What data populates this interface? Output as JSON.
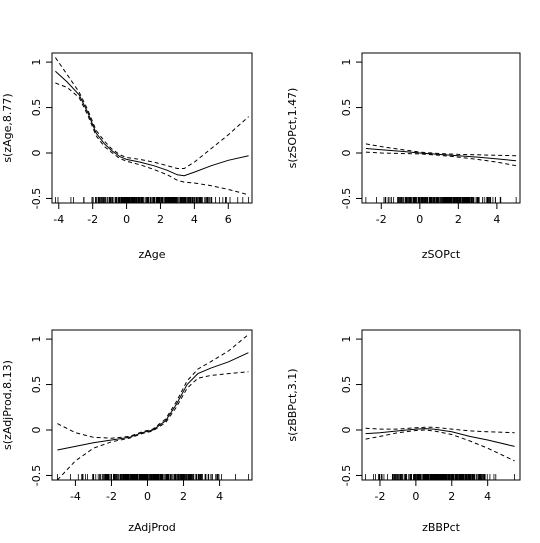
{
  "chart_data": [
    {
      "type": "line",
      "xlabel": "zAge",
      "ylabel": "s(zAge,8.77)",
      "xticks": [
        -4,
        -2,
        0,
        2,
        4,
        6
      ],
      "yticks": [
        -0.5,
        0.0,
        0.5,
        1.0
      ],
      "xlim": [
        -4.4,
        7.4
      ],
      "ylim": [
        -0.55,
        1.1
      ],
      "series": [
        {
          "role": "estimate",
          "x": [
            -4.2,
            -3.5,
            -2.8,
            -2.3,
            -1.8,
            -1.3,
            -0.9,
            -0.4,
            0,
            0.8,
            1.6,
            2.4,
            3.0,
            3.4,
            4.0,
            5.0,
            6.0,
            7.2
          ],
          "y": [
            0.9,
            0.78,
            0.64,
            0.45,
            0.22,
            0.1,
            0.03,
            -0.04,
            -0.07,
            -0.1,
            -0.14,
            -0.19,
            -0.24,
            -0.25,
            -0.21,
            -0.14,
            -0.08,
            -0.03
          ]
        },
        {
          "role": "upper",
          "x": [
            -4.2,
            -3.5,
            -2.8,
            -2.3,
            -1.8,
            -1.3,
            -0.9,
            -0.4,
            0,
            0.8,
            1.6,
            2.4,
            3.0,
            3.4,
            4.0,
            5.0,
            6.0,
            7.2
          ],
          "y": [
            1.05,
            0.86,
            0.67,
            0.48,
            0.25,
            0.13,
            0.05,
            -0.02,
            -0.05,
            -0.07,
            -0.1,
            -0.14,
            -0.17,
            -0.17,
            -0.1,
            0.05,
            0.2,
            0.4
          ]
        },
        {
          "role": "lower",
          "x": [
            -4.2,
            -3.5,
            -2.8,
            -2.3,
            -1.8,
            -1.3,
            -0.9,
            -0.4,
            0,
            0.8,
            1.6,
            2.4,
            3.0,
            3.4,
            4.0,
            5.0,
            6.0,
            7.2
          ],
          "y": [
            0.77,
            0.72,
            0.61,
            0.42,
            0.19,
            0.07,
            0.01,
            -0.06,
            -0.09,
            -0.13,
            -0.18,
            -0.24,
            -0.3,
            -0.32,
            -0.33,
            -0.36,
            -0.4,
            -0.46
          ]
        }
      ],
      "rug_range": [
        -4.2,
        7.2
      ],
      "rug_count": 300
    },
    {
      "type": "line",
      "xlabel": "zSOPct",
      "ylabel": "s(zSOPct,1.47)",
      "xticks": [
        -2,
        0,
        2,
        4
      ],
      "yticks": [
        -0.5,
        0.0,
        0.5,
        1.0
      ],
      "xlim": [
        -3.0,
        5.2
      ],
      "ylim": [
        -0.55,
        1.1
      ],
      "series": [
        {
          "role": "estimate",
          "x": [
            -2.8,
            -2.0,
            -1.0,
            0,
            1.0,
            2.0,
            3.0,
            4.0,
            5.0
          ],
          "y": [
            0.05,
            0.035,
            0.02,
            0.0,
            -0.015,
            -0.03,
            -0.045,
            -0.065,
            -0.085
          ]
        },
        {
          "role": "upper",
          "x": [
            -2.8,
            -2.0,
            -1.0,
            0,
            1.0,
            2.0,
            3.0,
            4.0,
            5.0
          ],
          "y": [
            0.1,
            0.07,
            0.04,
            0.01,
            -0.005,
            -0.015,
            -0.02,
            -0.025,
            -0.03
          ]
        },
        {
          "role": "lower",
          "x": [
            -2.8,
            -2.0,
            -1.0,
            0,
            1.0,
            2.0,
            3.0,
            4.0,
            5.0
          ],
          "y": [
            0.01,
            0.0,
            -0.005,
            -0.01,
            -0.025,
            -0.045,
            -0.07,
            -0.1,
            -0.14
          ]
        }
      ],
      "rug_range": [
        -2.8,
        5.0
      ],
      "rug_count": 260
    },
    {
      "type": "line",
      "xlabel": "zAdjProd",
      "ylabel": "s(zAdjProd,8.13)",
      "xticks": [
        -4,
        -2,
        0,
        2,
        4
      ],
      "yticks": [
        -0.5,
        0.0,
        0.5,
        1.0
      ],
      "xlim": [
        -5.3,
        5.8
      ],
      "ylim": [
        -0.55,
        1.1
      ],
      "series": [
        {
          "role": "estimate",
          "x": [
            -5.0,
            -4.0,
            -3.0,
            -2.0,
            -1.0,
            -0.3,
            0.3,
            1.0,
            1.6,
            2.2,
            2.8,
            3.5,
            4.5,
            5.6
          ],
          "y": [
            -0.22,
            -0.18,
            -0.14,
            -0.11,
            -0.08,
            -0.03,
            0.0,
            0.1,
            0.28,
            0.5,
            0.62,
            0.68,
            0.75,
            0.85
          ]
        },
        {
          "role": "upper",
          "x": [
            -5.0,
            -4.0,
            -3.0,
            -2.0,
            -1.0,
            -0.3,
            0.3,
            1.0,
            1.6,
            2.2,
            2.8,
            3.5,
            4.5,
            5.6
          ],
          "y": [
            0.07,
            -0.03,
            -0.08,
            -0.09,
            -0.07,
            -0.02,
            0.01,
            0.12,
            0.31,
            0.54,
            0.67,
            0.75,
            0.87,
            1.05
          ]
        },
        {
          "role": "lower",
          "x": [
            -5.0,
            -4.0,
            -3.0,
            -2.0,
            -1.0,
            -0.3,
            0.3,
            1.0,
            1.6,
            2.2,
            2.8,
            3.5,
            4.5,
            5.6
          ],
          "y": [
            -0.55,
            -0.34,
            -0.2,
            -0.13,
            -0.09,
            -0.04,
            -0.01,
            0.08,
            0.25,
            0.46,
            0.57,
            0.6,
            0.62,
            0.64
          ]
        }
      ],
      "rug_range": [
        -5.0,
        5.6
      ],
      "rug_count": 300
    },
    {
      "type": "line",
      "xlabel": "zBBPct",
      "ylabel": "s(zBBPct,3.1)",
      "xticks": [
        -2,
        0,
        2,
        4
      ],
      "yticks": [
        -0.5,
        0.0,
        0.5,
        1.0
      ],
      "xlim": [
        -3.0,
        5.8
      ],
      "ylim": [
        -0.55,
        1.1
      ],
      "series": [
        {
          "role": "estimate",
          "x": [
            -2.8,
            -2.0,
            -1.0,
            0,
            0.5,
            1.0,
            2.0,
            3.0,
            4.0,
            5.5
          ],
          "y": [
            -0.04,
            -0.03,
            -0.01,
            0.01,
            0.015,
            0.01,
            -0.02,
            -0.07,
            -0.11,
            -0.18
          ]
        },
        {
          "role": "upper",
          "x": [
            -2.8,
            -2.0,
            -1.0,
            0,
            0.5,
            1.0,
            2.0,
            3.0,
            4.0,
            5.5
          ],
          "y": [
            0.02,
            0.01,
            0.01,
            0.025,
            0.03,
            0.03,
            0.01,
            -0.01,
            -0.02,
            -0.03
          ]
        },
        {
          "role": "lower",
          "x": [
            -2.8,
            -2.0,
            -1.0,
            0,
            0.5,
            1.0,
            2.0,
            3.0,
            4.0,
            5.5
          ],
          "y": [
            -0.1,
            -0.07,
            -0.03,
            -0.005,
            0.0,
            -0.01,
            -0.05,
            -0.12,
            -0.2,
            -0.34
          ]
        }
      ],
      "rug_range": [
        -2.8,
        5.5
      ],
      "rug_count": 300
    }
  ]
}
